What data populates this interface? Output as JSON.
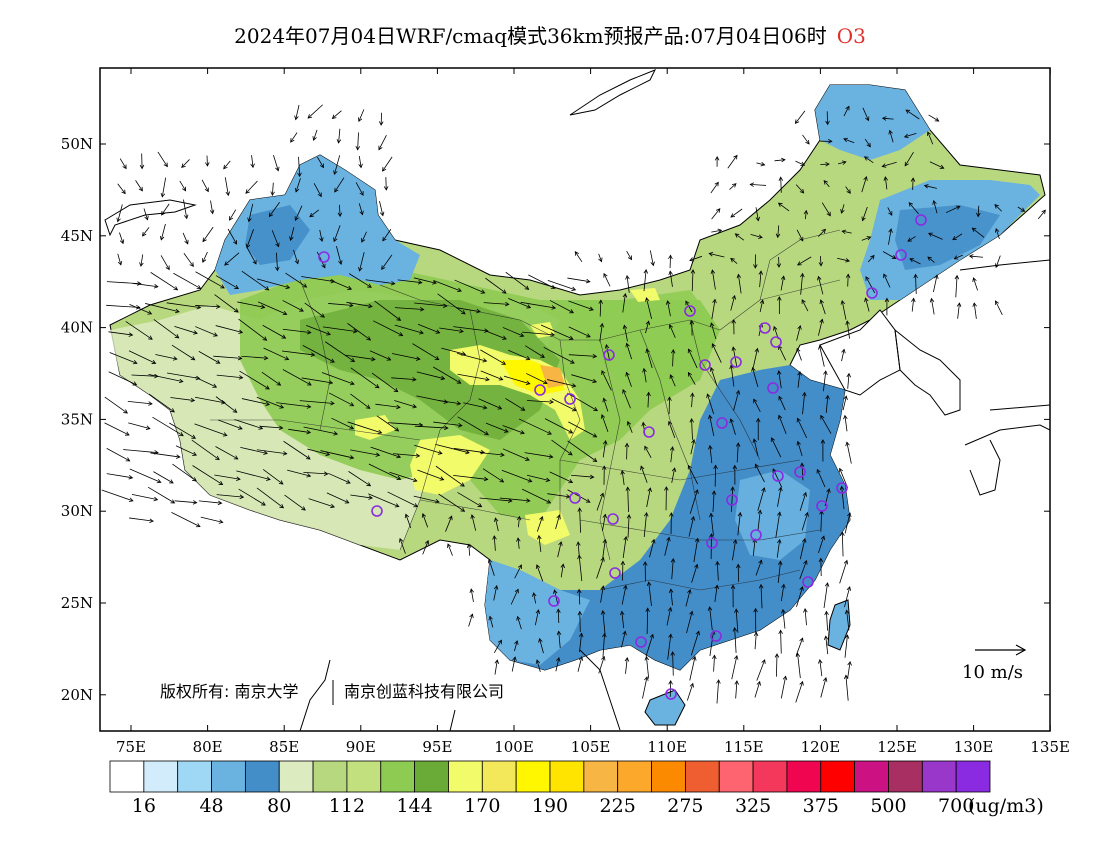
{
  "title": {
    "main": "2024年07月04日WRF/cmaq模式36km预报产品:07月04日06时",
    "species": "O3"
  },
  "map": {
    "lat_ticks": [
      "50N",
      "45N",
      "40N",
      "35N",
      "30N",
      "25N",
      "20N"
    ],
    "lon_ticks": [
      "75E",
      "80E",
      "85E",
      "90E",
      "95E",
      "100E",
      "105E",
      "110E",
      "115E",
      "120E",
      "125E",
      "130E",
      "135E"
    ],
    "copyright": "版权所有: 南京大学",
    "copyright2": "南京创蓝科技有限公司",
    "wind_scale_label": "10 m/s"
  },
  "colorbar": {
    "colors": [
      "#ffffff",
      "#d2ecfb",
      "#9fd8f4",
      "#6ab2e0",
      "#438dc8",
      "#dcebc0",
      "#b8d87f",
      "#c3e07e",
      "#8ecb52",
      "#6aaa36",
      "#f2fb6a",
      "#f3e85a",
      "#fff700",
      "#ffe400",
      "#f7b544",
      "#fca92b",
      "#fb8a00",
      "#ef5e31",
      "#fd6470",
      "#f4385c",
      "#ef0550",
      "#ff0000",
      "#cc1282",
      "#a72f61",
      "#9937cb",
      "#8a2be2"
    ],
    "labels": [
      "16",
      "48",
      "80",
      "112",
      "144",
      "170",
      "190",
      "225",
      "275",
      "325",
      "375",
      "500",
      "700"
    ],
    "units": "(ug/m3)"
  }
}
